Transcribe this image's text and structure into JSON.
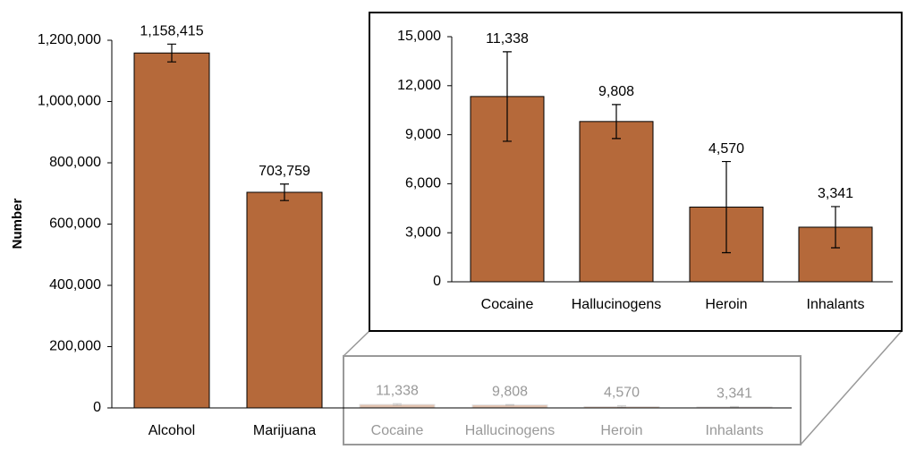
{
  "chart_data": [
    {
      "type": "bar",
      "y_label": "Number",
      "categories": [
        "Alcohol",
        "Marijuana",
        "Cocaine",
        "Hallucinogens",
        "Heroin",
        "Inhalants"
      ],
      "values": [
        1158415,
        703759,
        11338,
        9808,
        4570,
        3341
      ],
      "value_labels": [
        "1,158,415",
        "703,759",
        "11,338",
        "9,808",
        "4,570",
        "3,341"
      ],
      "errors": [
        29000,
        27000,
        2740,
        1040,
        2790,
        1260
      ],
      "color": "#b5693a",
      "ylim": [
        0,
        1200000
      ],
      "yticks": [
        0,
        {
          "value": 200000,
          "label": "200,000"
        },
        {
          "value": 400000,
          "label": "400,000"
        },
        {
          "value": 600000,
          "label": "600,000"
        },
        {
          "value": 800000,
          "label": "800,000"
        },
        {
          "value": 1000000,
          "label": "1,000,000"
        },
        {
          "value": 1200000,
          "label": "1,200,000"
        }
      ]
    },
    {
      "type": "bar",
      "categories": [
        "Cocaine",
        "Hallucinogens",
        "Heroin",
        "Inhalants"
      ],
      "values": [
        11338,
        9808,
        4570,
        3341
      ],
      "value_labels": [
        "11,338",
        "9,808",
        "4,570",
        "3,341"
      ],
      "errors": [
        2740,
        1040,
        2790,
        1260
      ],
      "color": "#b5693a",
      "ylim": [
        0,
        15000
      ],
      "yticks": [
        0,
        {
          "value": 3000,
          "label": "3,000"
        },
        {
          "value": 6000,
          "label": "6,000"
        },
        {
          "value": 9000,
          "label": "9,000"
        },
        {
          "value": 12000,
          "label": "12,000"
        },
        {
          "value": 15000,
          "label": "15,000"
        }
      ]
    }
  ]
}
